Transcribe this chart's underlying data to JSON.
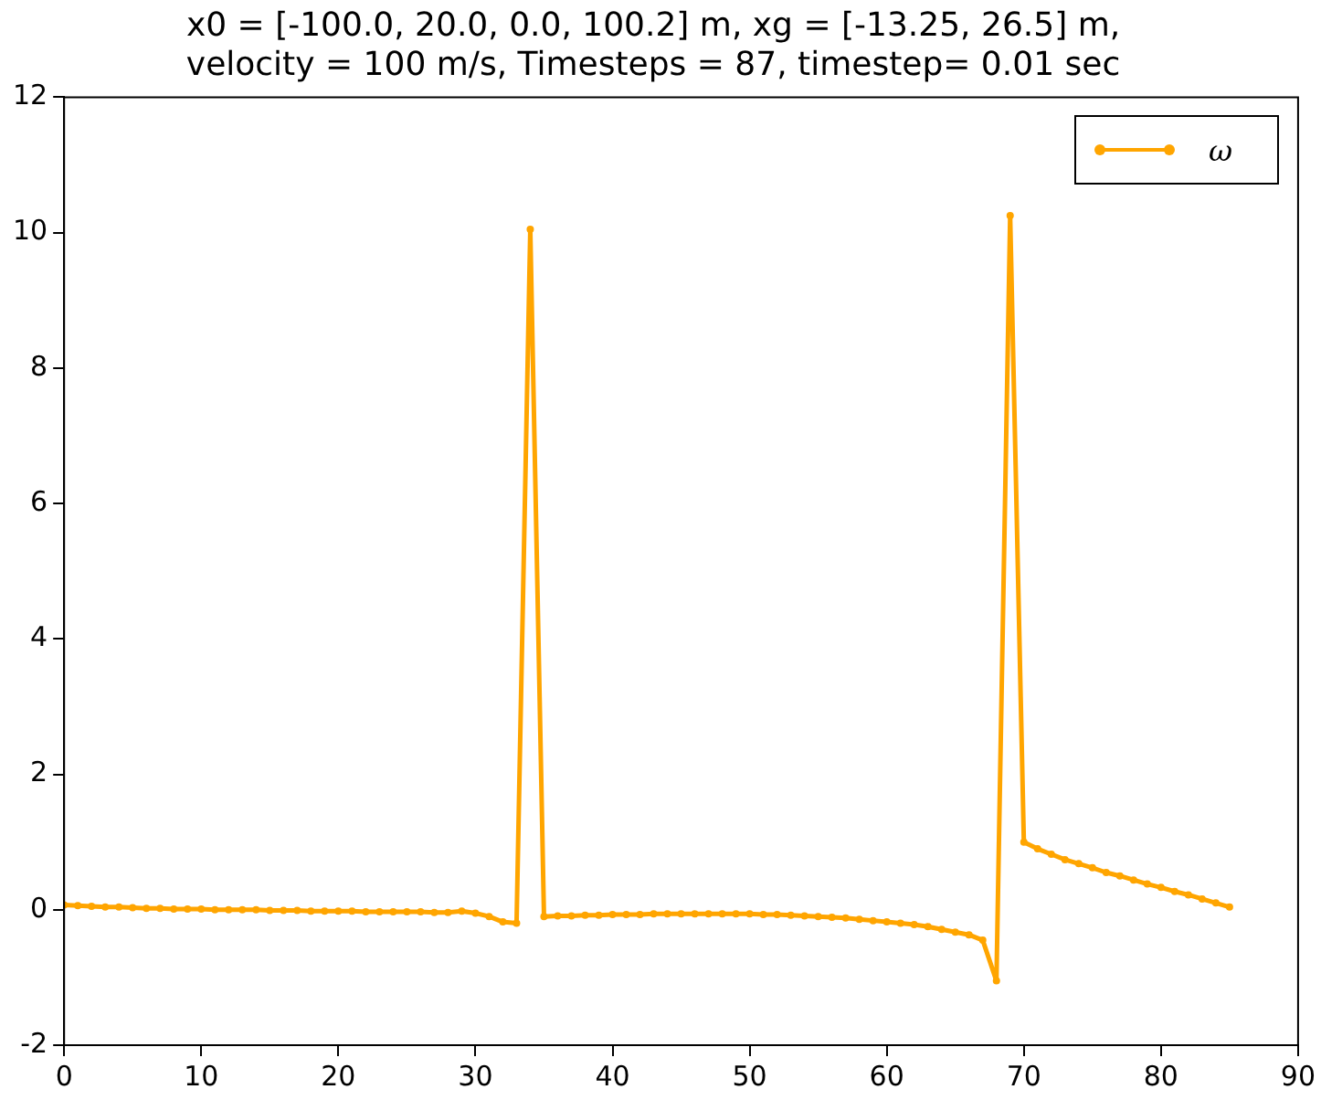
{
  "chart_data": {
    "type": "line",
    "title": [
      "x0 = [-100.0, 20.0, 0.0, 100.2] m, xg = [-13.25, 26.5] m,",
      "velocity = 100 m/s, Timesteps = 87, timestep= 0.01 sec"
    ],
    "x": [
      0,
      1,
      2,
      3,
      4,
      5,
      6,
      7,
      8,
      9,
      10,
      11,
      12,
      13,
      14,
      15,
      16,
      17,
      18,
      19,
      20,
      21,
      22,
      23,
      24,
      25,
      26,
      27,
      28,
      29,
      30,
      31,
      32,
      33,
      34,
      35,
      36,
      37,
      38,
      39,
      40,
      41,
      42,
      43,
      44,
      45,
      46,
      47,
      48,
      49,
      50,
      51,
      52,
      53,
      54,
      55,
      56,
      57,
      58,
      59,
      60,
      61,
      62,
      63,
      64,
      65,
      66,
      67,
      68,
      69,
      70,
      71,
      72,
      73,
      74,
      75,
      76,
      77,
      78,
      79,
      80,
      81,
      82,
      83,
      84,
      85
    ],
    "series": [
      {
        "name": "ω",
        "color": "#ffa500",
        "values": [
          0.07,
          0.06,
          0.05,
          0.04,
          0.04,
          0.03,
          0.02,
          0.02,
          0.01,
          0.01,
          0.01,
          0.0,
          0.0,
          0.0,
          0.0,
          -0.01,
          -0.01,
          -0.01,
          -0.02,
          -0.02,
          -0.02,
          -0.02,
          -0.03,
          -0.03,
          -0.03,
          -0.03,
          -0.03,
          -0.04,
          -0.04,
          -0.02,
          -0.05,
          -0.1,
          -0.18,
          -0.2,
          10.05,
          -0.1,
          -0.09,
          -0.09,
          -0.08,
          -0.08,
          -0.07,
          -0.07,
          -0.07,
          -0.06,
          -0.06,
          -0.06,
          -0.06,
          -0.06,
          -0.06,
          -0.06,
          -0.06,
          -0.07,
          -0.07,
          -0.08,
          -0.09,
          -0.1,
          -0.11,
          -0.12,
          -0.14,
          -0.16,
          -0.18,
          -0.2,
          -0.22,
          -0.25,
          -0.29,
          -0.33,
          -0.37,
          -0.45,
          -1.05,
          10.25,
          1.0,
          0.9,
          0.82,
          0.74,
          0.68,
          0.62,
          0.55,
          0.5,
          0.44,
          0.38,
          0.33,
          0.27,
          0.22,
          0.16,
          0.1,
          0.04
        ]
      }
    ],
    "xlim": [
      0,
      90
    ],
    "xticks": [
      0,
      10,
      20,
      30,
      40,
      50,
      60,
      70,
      80,
      90
    ],
    "ylim": [
      -2,
      12
    ],
    "yticks": [
      -2,
      0,
      2,
      4,
      6,
      8,
      10,
      12
    ],
    "grid": false,
    "legend": "top right",
    "marker": "circle",
    "line_style": "solid"
  }
}
